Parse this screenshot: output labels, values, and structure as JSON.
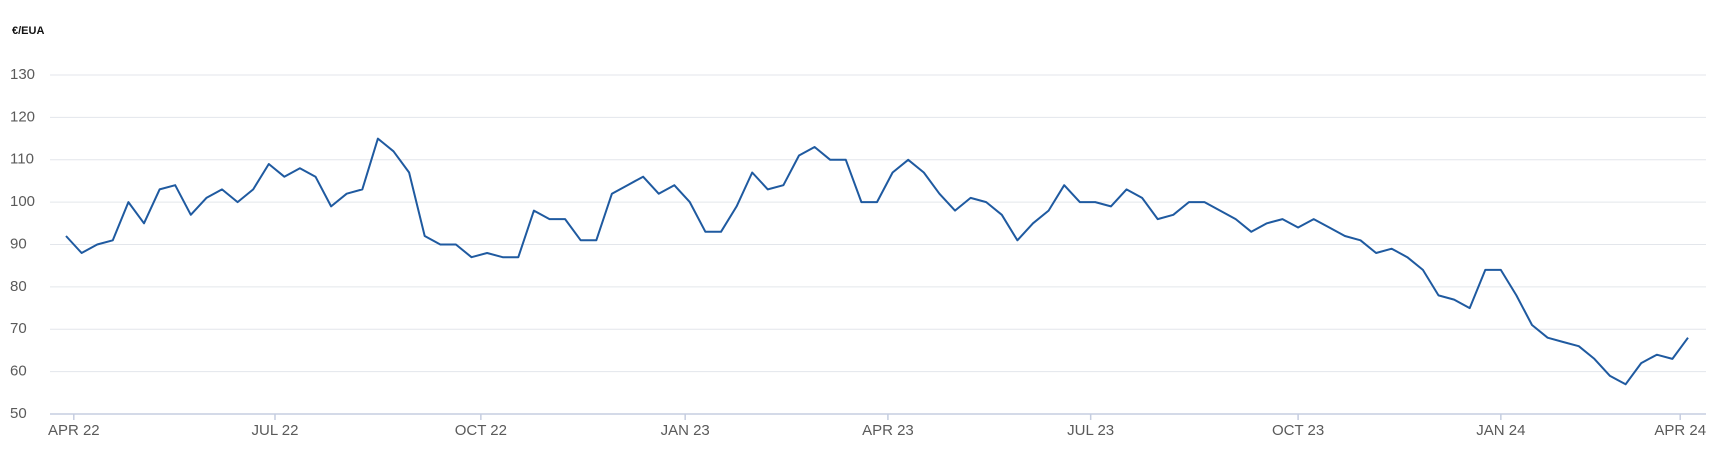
{
  "chart_data": {
    "type": "line",
    "y_label": "€/EUA",
    "ylim": [
      50,
      130
    ],
    "yticks": [
      50,
      60,
      70,
      80,
      90,
      100,
      110,
      120,
      130
    ],
    "grid": true,
    "xlim": [
      0,
      104
    ],
    "xticks": [
      {
        "value": 0.5,
        "label": "APR 22"
      },
      {
        "value": 13.4,
        "label": "JUL 22"
      },
      {
        "value": 26.6,
        "label": "OCT 22"
      },
      {
        "value": 39.7,
        "label": "JAN 23"
      },
      {
        "value": 52.7,
        "label": "APR 23"
      },
      {
        "value": 65.7,
        "label": "JUL 23"
      },
      {
        "value": 79,
        "label": "OCT 23"
      },
      {
        "value": 92,
        "label": "JAN 24"
      },
      {
        "value": 103.5,
        "label": "APR 24"
      }
    ],
    "series": [
      {
        "color": "#1f5aa0",
        "values": [
          92,
          88,
          90,
          91,
          100,
          95,
          103,
          104,
          97,
          101,
          103,
          100,
          103,
          109,
          106,
          108,
          106,
          99,
          102,
          103,
          115,
          112,
          107,
          92,
          90,
          90,
          87,
          88,
          87,
          87,
          98,
          96,
          96,
          91,
          91,
          102,
          104,
          106,
          102,
          104,
          100,
          93,
          93,
          99,
          107,
          103,
          104,
          111,
          113,
          110,
          110,
          100,
          100,
          107,
          110,
          107,
          102,
          98,
          101,
          100,
          97,
          91,
          95,
          98,
          104,
          100,
          100,
          99,
          103,
          101,
          96,
          97,
          100,
          100,
          98,
          96,
          93,
          95,
          96,
          94,
          96,
          94,
          92,
          91,
          88,
          89,
          87,
          84,
          78,
          77,
          75,
          84,
          84,
          78,
          71,
          68,
          67,
          66,
          63,
          59,
          57,
          62,
          64,
          63,
          68
        ]
      }
    ]
  }
}
